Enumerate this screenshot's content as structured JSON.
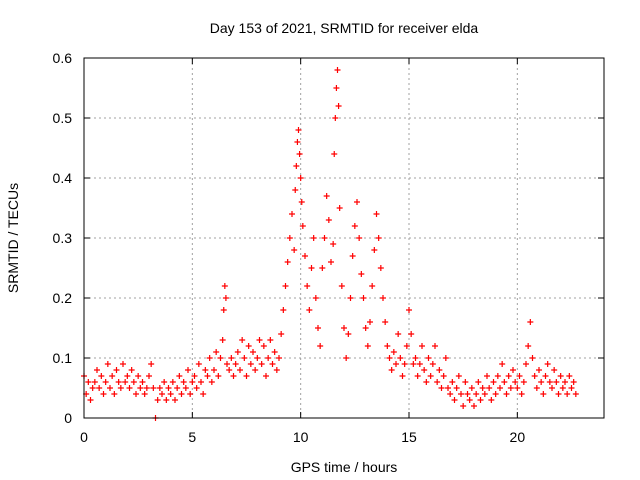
{
  "chart_data": {
    "type": "scatter",
    "title": "Day 153 of 2021, SRMTID for receiver elda",
    "xlabel": "GPS time / hours",
    "ylabel": "SRMTID / TECUs",
    "xlim": [
      0,
      24
    ],
    "ylim": [
      0,
      0.6
    ],
    "xticks": [
      "0",
      "5",
      "10",
      "15",
      "20"
    ],
    "yticks": [
      "0",
      "0.1",
      "0.2",
      "0.3",
      "0.4",
      "0.5",
      "0.6"
    ],
    "grid": true,
    "marker": "+",
    "color": "#ff0000",
    "series": [
      {
        "name": "SRMTID",
        "points": [
          [
            0.0,
            0.07
          ],
          [
            0.1,
            0.04
          ],
          [
            0.2,
            0.06
          ],
          [
            0.3,
            0.03
          ],
          [
            0.4,
            0.05
          ],
          [
            0.5,
            0.06
          ],
          [
            0.6,
            0.08
          ],
          [
            0.7,
            0.05
          ],
          [
            0.8,
            0.07
          ],
          [
            0.9,
            0.04
          ],
          [
            1.0,
            0.06
          ],
          [
            1.1,
            0.09
          ],
          [
            1.2,
            0.05
          ],
          [
            1.3,
            0.07
          ],
          [
            1.4,
            0.04
          ],
          [
            1.5,
            0.08
          ],
          [
            1.6,
            0.06
          ],
          [
            1.7,
            0.05
          ],
          [
            1.8,
            0.09
          ],
          [
            1.9,
            0.06
          ],
          [
            2.0,
            0.07
          ],
          [
            2.1,
            0.05
          ],
          [
            2.2,
            0.08
          ],
          [
            2.3,
            0.06
          ],
          [
            2.4,
            0.04
          ],
          [
            2.5,
            0.07
          ],
          [
            2.6,
            0.05
          ],
          [
            2.7,
            0.06
          ],
          [
            2.8,
            0.04
          ],
          [
            2.9,
            0.05
          ],
          [
            3.0,
            0.07
          ],
          [
            3.1,
            0.09
          ],
          [
            3.2,
            0.05
          ],
          [
            3.3,
            0.0
          ],
          [
            3.4,
            0.03
          ],
          [
            3.5,
            0.05
          ],
          [
            3.6,
            0.04
          ],
          [
            3.7,
            0.06
          ],
          [
            3.8,
            0.03
          ],
          [
            3.9,
            0.05
          ],
          [
            4.0,
            0.04
          ],
          [
            4.1,
            0.06
          ],
          [
            4.2,
            0.03
          ],
          [
            4.3,
            0.05
          ],
          [
            4.4,
            0.07
          ],
          [
            4.5,
            0.04
          ],
          [
            4.6,
            0.06
          ],
          [
            4.7,
            0.05
          ],
          [
            4.8,
            0.08
          ],
          [
            4.9,
            0.04
          ],
          [
            5.0,
            0.06
          ],
          [
            5.1,
            0.07
          ],
          [
            5.2,
            0.05
          ],
          [
            5.3,
            0.09
          ],
          [
            5.4,
            0.06
          ],
          [
            5.5,
            0.04
          ],
          [
            5.6,
            0.08
          ],
          [
            5.7,
            0.07
          ],
          [
            5.8,
            0.1
          ],
          [
            5.9,
            0.06
          ],
          [
            6.0,
            0.08
          ],
          [
            6.1,
            0.11
          ],
          [
            6.2,
            0.07
          ],
          [
            6.3,
            0.1
          ],
          [
            6.4,
            0.13
          ],
          [
            6.45,
            0.18
          ],
          [
            6.5,
            0.22
          ],
          [
            6.55,
            0.2
          ],
          [
            6.6,
            0.09
          ],
          [
            6.7,
            0.08
          ],
          [
            6.8,
            0.1
          ],
          [
            6.9,
            0.07
          ],
          [
            7.0,
            0.09
          ],
          [
            7.1,
            0.11
          ],
          [
            7.2,
            0.08
          ],
          [
            7.3,
            0.13
          ],
          [
            7.4,
            0.1
          ],
          [
            7.5,
            0.07
          ],
          [
            7.6,
            0.12
          ],
          [
            7.7,
            0.09
          ],
          [
            7.8,
            0.11
          ],
          [
            7.9,
            0.08
          ],
          [
            8.0,
            0.1
          ],
          [
            8.1,
            0.13
          ],
          [
            8.2,
            0.09
          ],
          [
            8.3,
            0.12
          ],
          [
            8.4,
            0.07
          ],
          [
            8.5,
            0.1
          ],
          [
            8.6,
            0.13
          ],
          [
            8.7,
            0.09
          ],
          [
            8.8,
            0.11
          ],
          [
            8.9,
            0.08
          ],
          [
            9.0,
            0.1
          ],
          [
            9.1,
            0.14
          ],
          [
            9.2,
            0.18
          ],
          [
            9.3,
            0.22
          ],
          [
            9.4,
            0.26
          ],
          [
            9.5,
            0.3
          ],
          [
            9.6,
            0.34
          ],
          [
            9.7,
            0.28
          ],
          [
            9.75,
            0.38
          ],
          [
            9.8,
            0.42
          ],
          [
            9.85,
            0.46
          ],
          [
            9.9,
            0.48
          ],
          [
            9.95,
            0.44
          ],
          [
            10.0,
            0.4
          ],
          [
            10.05,
            0.36
          ],
          [
            10.1,
            0.32
          ],
          [
            10.2,
            0.27
          ],
          [
            10.3,
            0.22
          ],
          [
            10.4,
            0.18
          ],
          [
            10.5,
            0.25
          ],
          [
            10.6,
            0.3
          ],
          [
            10.7,
            0.2
          ],
          [
            10.8,
            0.15
          ],
          [
            10.9,
            0.12
          ],
          [
            11.0,
            0.25
          ],
          [
            11.1,
            0.3
          ],
          [
            11.2,
            0.37
          ],
          [
            11.3,
            0.33
          ],
          [
            11.4,
            0.26
          ],
          [
            11.5,
            0.29
          ],
          [
            11.55,
            0.44
          ],
          [
            11.6,
            0.5
          ],
          [
            11.65,
            0.55
          ],
          [
            11.7,
            0.58
          ],
          [
            11.75,
            0.52
          ],
          [
            11.8,
            0.35
          ],
          [
            11.9,
            0.22
          ],
          [
            12.0,
            0.15
          ],
          [
            12.1,
            0.1
          ],
          [
            12.2,
            0.14
          ],
          [
            12.3,
            0.2
          ],
          [
            12.4,
            0.27
          ],
          [
            12.5,
            0.32
          ],
          [
            12.6,
            0.36
          ],
          [
            12.7,
            0.3
          ],
          [
            12.8,
            0.24
          ],
          [
            12.9,
            0.2
          ],
          [
            13.0,
            0.15
          ],
          [
            13.1,
            0.12
          ],
          [
            13.2,
            0.16
          ],
          [
            13.3,
            0.22
          ],
          [
            13.4,
            0.28
          ],
          [
            13.5,
            0.34
          ],
          [
            13.6,
            0.3
          ],
          [
            13.7,
            0.25
          ],
          [
            13.8,
            0.2
          ],
          [
            13.9,
            0.16
          ],
          [
            14.0,
            0.12
          ],
          [
            14.1,
            0.1
          ],
          [
            14.2,
            0.08
          ],
          [
            14.3,
            0.11
          ],
          [
            14.4,
            0.09
          ],
          [
            14.5,
            0.14
          ],
          [
            14.6,
            0.1
          ],
          [
            14.7,
            0.07
          ],
          [
            14.8,
            0.09
          ],
          [
            14.9,
            0.12
          ],
          [
            15.0,
            0.18
          ],
          [
            15.1,
            0.14
          ],
          [
            15.2,
            0.09
          ],
          [
            15.3,
            0.1
          ],
          [
            15.4,
            0.07
          ],
          [
            15.5,
            0.09
          ],
          [
            15.6,
            0.12
          ],
          [
            15.7,
            0.08
          ],
          [
            15.8,
            0.06
          ],
          [
            15.9,
            0.1
          ],
          [
            16.0,
            0.07
          ],
          [
            16.1,
            0.09
          ],
          [
            16.2,
            0.12
          ],
          [
            16.3,
            0.06
          ],
          [
            16.4,
            0.08
          ],
          [
            16.5,
            0.05
          ],
          [
            16.6,
            0.07
          ],
          [
            16.7,
            0.1
          ],
          [
            16.8,
            0.05
          ],
          [
            16.9,
            0.04
          ],
          [
            17.0,
            0.06
          ],
          [
            17.1,
            0.03
          ],
          [
            17.2,
            0.05
          ],
          [
            17.3,
            0.07
          ],
          [
            17.4,
            0.04
          ],
          [
            17.5,
            0.02
          ],
          [
            17.6,
            0.06
          ],
          [
            17.7,
            0.04
          ],
          [
            17.8,
            0.03
          ],
          [
            17.9,
            0.05
          ],
          [
            18.0,
            0.02
          ],
          [
            18.1,
            0.04
          ],
          [
            18.2,
            0.06
          ],
          [
            18.3,
            0.03
          ],
          [
            18.4,
            0.05
          ],
          [
            18.5,
            0.04
          ],
          [
            18.6,
            0.07
          ],
          [
            18.7,
            0.05
          ],
          [
            18.8,
            0.03
          ],
          [
            18.9,
            0.06
          ],
          [
            19.0,
            0.04
          ],
          [
            19.1,
            0.07
          ],
          [
            19.2,
            0.05
          ],
          [
            19.3,
            0.09
          ],
          [
            19.4,
            0.06
          ],
          [
            19.5,
            0.04
          ],
          [
            19.6,
            0.07
          ],
          [
            19.7,
            0.05
          ],
          [
            19.8,
            0.08
          ],
          [
            19.9,
            0.06
          ],
          [
            20.0,
            0.05
          ],
          [
            20.1,
            0.07
          ],
          [
            20.2,
            0.04
          ],
          [
            20.3,
            0.06
          ],
          [
            20.4,
            0.09
          ],
          [
            20.5,
            0.12
          ],
          [
            20.6,
            0.16
          ],
          [
            20.7,
            0.1
          ],
          [
            20.8,
            0.07
          ],
          [
            20.9,
            0.05
          ],
          [
            21.0,
            0.08
          ],
          [
            21.1,
            0.06
          ],
          [
            21.2,
            0.04
          ],
          [
            21.3,
            0.07
          ],
          [
            21.4,
            0.09
          ],
          [
            21.5,
            0.06
          ],
          [
            21.6,
            0.05
          ],
          [
            21.7,
            0.08
          ],
          [
            21.8,
            0.06
          ],
          [
            21.9,
            0.04
          ],
          [
            22.0,
            0.07
          ],
          [
            22.1,
            0.05
          ],
          [
            22.2,
            0.06
          ],
          [
            22.3,
            0.04
          ],
          [
            22.4,
            0.07
          ],
          [
            22.5,
            0.05
          ],
          [
            22.6,
            0.06
          ],
          [
            22.7,
            0.04
          ]
        ]
      }
    ]
  }
}
